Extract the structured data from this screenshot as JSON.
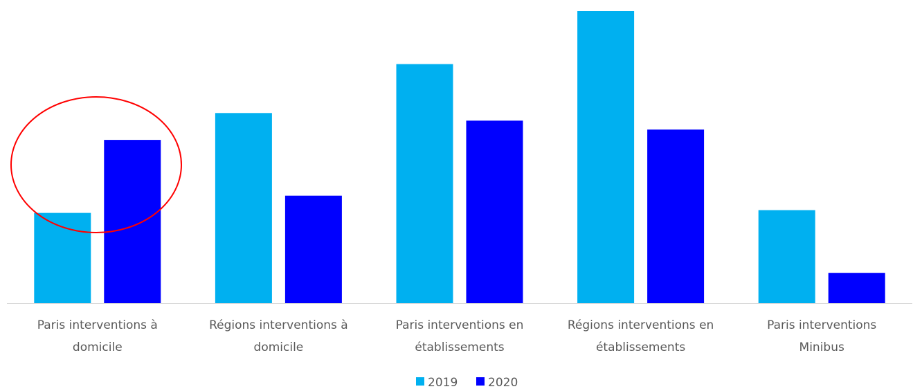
{
  "chart_data": {
    "type": "bar",
    "categories": [
      [
        "Paris interventions à",
        "domicile"
      ],
      [
        "Régions interventions à",
        "domicile"
      ],
      [
        "Paris interventions en",
        "établissements"
      ],
      [
        "Régions interventions en",
        "établissements"
      ],
      [
        "Paris interventions",
        "Minibus"
      ]
    ],
    "series": [
      {
        "name": "2019",
        "color": "#00B0F0",
        "values": [
          131,
          276,
          347,
          424,
          135
        ]
      },
      {
        "name": "2020",
        "color": "#0000FF",
        "values": [
          237,
          156,
          265,
          252,
          44
        ]
      }
    ],
    "ylim": [
      0,
      424
    ],
    "grid": false,
    "y_axis_shown": false,
    "legend_position": "bottom",
    "annotations": [
      {
        "type": "ellipse",
        "color": "#FF0000",
        "highlights": "Paris interventions à domicile"
      }
    ]
  }
}
